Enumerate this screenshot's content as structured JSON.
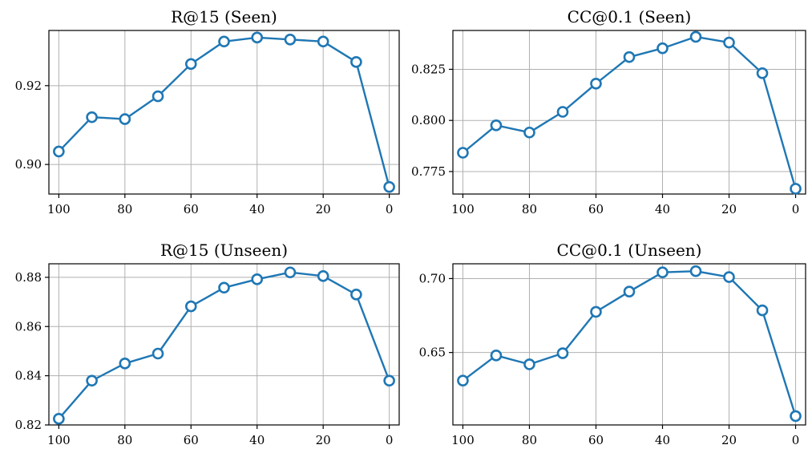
{
  "chart_data": [
    {
      "type": "line",
      "title": "R@15 (Seen)",
      "xlabel": "",
      "ylabel": "",
      "x": [
        100,
        90,
        80,
        70,
        60,
        50,
        40,
        30,
        20,
        10,
        0
      ],
      "x_ticks": [
        100,
        80,
        60,
        40,
        20,
        0
      ],
      "xlim": [
        103,
        -3
      ],
      "x_inverted": true,
      "series": [
        {
          "values": [
            0.9033,
            0.912,
            0.9115,
            0.9173,
            0.9255,
            0.9312,
            0.9322,
            0.9317,
            0.9312,
            0.926,
            0.8943
          ]
        }
      ],
      "y_ticks": [
        0.9,
        0.92
      ],
      "y_tick_labels": [
        "0.90",
        "0.92"
      ],
      "ylim": [
        0.8925,
        0.934
      ],
      "grid": true,
      "color": "#1f77b4"
    },
    {
      "type": "line",
      "title": "CC@0.1 (Seen)",
      "xlabel": "",
      "ylabel": "",
      "x": [
        100,
        90,
        80,
        70,
        60,
        50,
        40,
        30,
        20,
        10,
        0
      ],
      "x_ticks": [
        100,
        80,
        60,
        40,
        20,
        0
      ],
      "xlim": [
        103,
        -3
      ],
      "x_inverted": true,
      "series": [
        {
          "values": [
            0.7842,
            0.7976,
            0.7941,
            0.8042,
            0.818,
            0.831,
            0.8353,
            0.8409,
            0.8381,
            0.8231,
            0.7666
          ]
        }
      ],
      "y_ticks": [
        0.775,
        0.8,
        0.825
      ],
      "y_tick_labels": [
        "0.775",
        "0.800",
        "0.825"
      ],
      "ylim": [
        0.764,
        0.844
      ],
      "grid": true,
      "color": "#1f77b4"
    },
    {
      "type": "line",
      "title": "R@15 (Unseen)",
      "xlabel": "",
      "ylabel": "",
      "x": [
        100,
        90,
        80,
        70,
        60,
        50,
        40,
        30,
        20,
        10,
        0
      ],
      "x_ticks": [
        100,
        80,
        60,
        40,
        20,
        0
      ],
      "xlim": [
        103,
        -3
      ],
      "x_inverted": true,
      "series": [
        {
          "values": [
            0.8225,
            0.838,
            0.845,
            0.849,
            0.8682,
            0.8758,
            0.8792,
            0.882,
            0.8805,
            0.873,
            0.838
          ]
        }
      ],
      "y_ticks": [
        0.82,
        0.84,
        0.86,
        0.88
      ],
      "y_tick_labels": [
        "0.82",
        "0.84",
        "0.86",
        "0.88"
      ],
      "ylim": [
        0.82,
        0.8855
      ],
      "grid": true,
      "color": "#1f77b4"
    },
    {
      "type": "line",
      "title": "CC@0.1 (Unseen)",
      "xlabel": "",
      "ylabel": "",
      "x": [
        100,
        90,
        80,
        70,
        60,
        50,
        40,
        30,
        20,
        10,
        0
      ],
      "x_ticks": [
        100,
        80,
        60,
        40,
        20,
        0
      ],
      "xlim": [
        103,
        -3
      ],
      "x_inverted": true,
      "series": [
        {
          "values": [
            0.631,
            0.648,
            0.642,
            0.6495,
            0.6775,
            0.6912,
            0.7042,
            0.705,
            0.701,
            0.6785,
            0.607
          ]
        }
      ],
      "y_ticks": [
        0.65,
        0.7
      ],
      "y_tick_labels": [
        "0.65",
        "0.70"
      ],
      "ylim": [
        0.601,
        0.71
      ],
      "grid": true,
      "color": "#1f77b4"
    }
  ]
}
